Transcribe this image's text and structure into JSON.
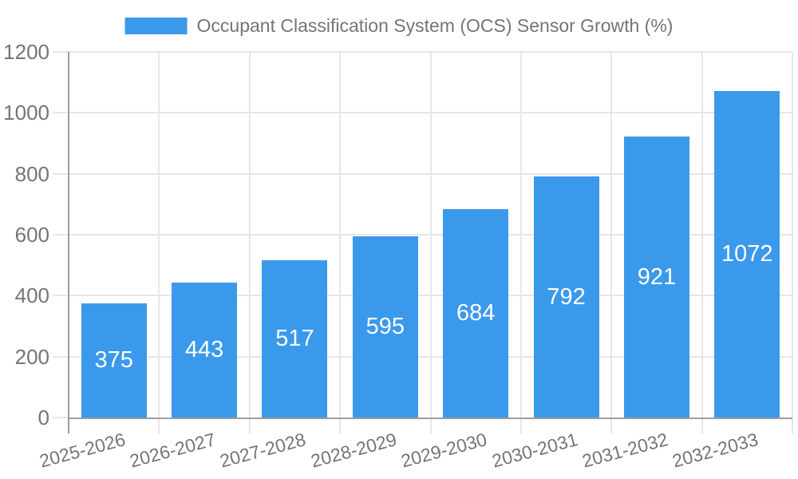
{
  "chart_data": {
    "type": "bar",
    "title": "Occupant Classification System (OCS) Sensor Growth (%)",
    "legend": {
      "position": "top",
      "entries": [
        "Occupant Classification System (OCS) Sensor Growth (%)"
      ]
    },
    "categories": [
      "2025-2026",
      "2026-2027",
      "2027-2028",
      "2028-2029",
      "2029-2030",
      "2030-2031",
      "2031-2032",
      "2032-2033"
    ],
    "values": [
      375,
      443,
      517,
      595,
      684,
      792,
      921,
      1072
    ],
    "value_labels_shown": true,
    "xlabel": "",
    "ylabel": "",
    "ylim": [
      0,
      1200
    ],
    "yticks": [
      0,
      200,
      400,
      600,
      800,
      1000,
      1200
    ],
    "grid": true,
    "x_label_rotation_deg": -15,
    "colors": {
      "bar": "#3b99ec",
      "value_label": "#ffffff",
      "axis_text": "#757575",
      "gridline": "#e6e6e6",
      "axis_line": "#9e9e9e",
      "background": "#ffffff"
    }
  }
}
